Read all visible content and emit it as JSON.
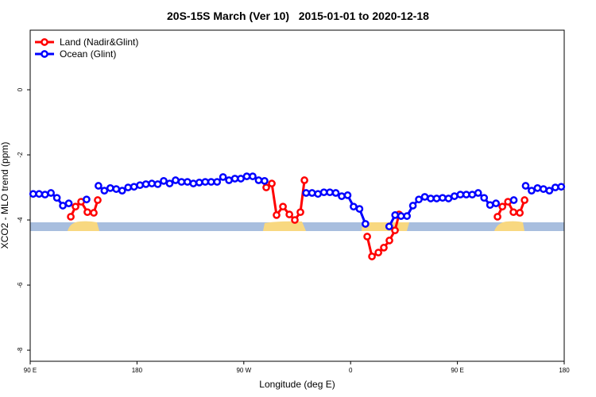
{
  "chart_data": {
    "type": "line",
    "title": "20S-15S March (Ver 10)   2015-01-01 to 2020-12-18",
    "x_label": "Longitude (deg E)",
    "y_label": "XCO2 - MLO trend (ppm)",
    "xlim": [
      90,
      540
    ],
    "ylim": [
      -8.34,
      1.83
    ],
    "xticks": [
      {
        "value": 90,
        "label": "90 E"
      },
      180,
      {
        "value": 270,
        "label": "90 W"
      },
      {
        "value": 360,
        "label": "0"
      },
      {
        "value": 450,
        "label": "90 E"
      },
      {
        "value": 540,
        "label": "180"
      }
    ],
    "yticks": [
      0,
      -2,
      -4,
      -6,
      -8
    ],
    "legend": "top-left",
    "series": [
      {
        "name": "Land (Nadir&Glint)",
        "color": "#ff0000",
        "x": [
          124.2,
          128.2,
          132.9,
          138.2,
          143.6,
          146.9,
          null,
          288.9,
          293.6,
          297.6,
          303,
          308.4,
          313,
          317.7,
          321.1,
          null,
          374,
          378,
          383.4,
          388,
          392.7,
          397.4,
          400.8,
          null,
          483.8,
          487.9,
          492.6,
          497.2,
          502.6,
          506.6
        ],
        "values": [
          -3.9,
          -3.59,
          -3.44,
          -3.76,
          -3.78,
          -3.39,
          null,
          -3.0,
          -2.88,
          -3.85,
          -3.59,
          -3.83,
          -4.0,
          -3.76,
          -2.78,
          null,
          -4.51,
          -5.12,
          -5.0,
          -4.85,
          -4.63,
          -4.32,
          -3.83,
          null,
          -3.9,
          -3.59,
          -3.44,
          -3.76,
          -3.78,
          -3.39
        ]
      },
      {
        "name": "Ocean (Glint)",
        "color": "#0000ff",
        "x": [
          92.5,
          97.5,
          102.5,
          107.5,
          112.5,
          117.5,
          122.5,
          127.5,
          132.5,
          137.5,
          142.5,
          147.5,
          152.5,
          157.5,
          162.5,
          167.5,
          172.5,
          177.5,
          182.5,
          187.5,
          192.5,
          197.5,
          202.5,
          207.5,
          212.5,
          217.5,
          222.5,
          227.5,
          232.5,
          237.5,
          242.5,
          247.5,
          252.5,
          257.5,
          262.5,
          267.5,
          272.5,
          277.5,
          282.5,
          287.5,
          292.5,
          297.5,
          302.5,
          307.5,
          312.5,
          317.5,
          322.5,
          327.5,
          332.5,
          337.5,
          342.5,
          347.5,
          352.5,
          357.5,
          362.5,
          367.5,
          372.5,
          377.5,
          382.5,
          387.5,
          392.5,
          397.5,
          402.5,
          407.5,
          412.5,
          417.5,
          422.5,
          427.5,
          432.5,
          437.5,
          442.5,
          447.5,
          452.5,
          457.5,
          462.5,
          467.5,
          472.5,
          477.5,
          482.5,
          487.5,
          492.5,
          497.5,
          502.5,
          507.5,
          512.5,
          517.5,
          522.5,
          527.5,
          532.5,
          537.5
        ],
        "values": [
          -3.2,
          -3.2,
          -3.22,
          -3.17,
          -3.32,
          -3.56,
          -3.49,
          null,
          null,
          -3.37,
          null,
          -2.95,
          -3.1,
          -3.02,
          -3.05,
          -3.1,
          -3.0,
          -2.98,
          -2.93,
          -2.9,
          -2.88,
          -2.9,
          -2.8,
          -2.88,
          -2.78,
          -2.83,
          -2.83,
          -2.88,
          -2.85,
          -2.83,
          -2.83,
          -2.83,
          -2.68,
          -2.78,
          -2.73,
          -2.73,
          -2.66,
          -2.66,
          -2.78,
          -2.8,
          null,
          null,
          null,
          null,
          null,
          null,
          -3.17,
          -3.17,
          -3.2,
          -3.15,
          -3.15,
          -3.17,
          -3.27,
          -3.24,
          -3.59,
          -3.66,
          -4.12,
          null,
          null,
          null,
          -4.2,
          -3.85,
          -3.88,
          -3.88,
          -3.56,
          -3.37,
          -3.29,
          -3.34,
          -3.34,
          -3.32,
          -3.34,
          -3.27,
          -3.22,
          -3.22,
          -3.22,
          -3.17,
          -3.32,
          -3.54,
          -3.49,
          null,
          null,
          -3.39,
          null,
          -2.95,
          -3.1,
          -3.02,
          -3.05,
          -3.1,
          -3.0,
          -2.98
        ]
      }
    ]
  }
}
